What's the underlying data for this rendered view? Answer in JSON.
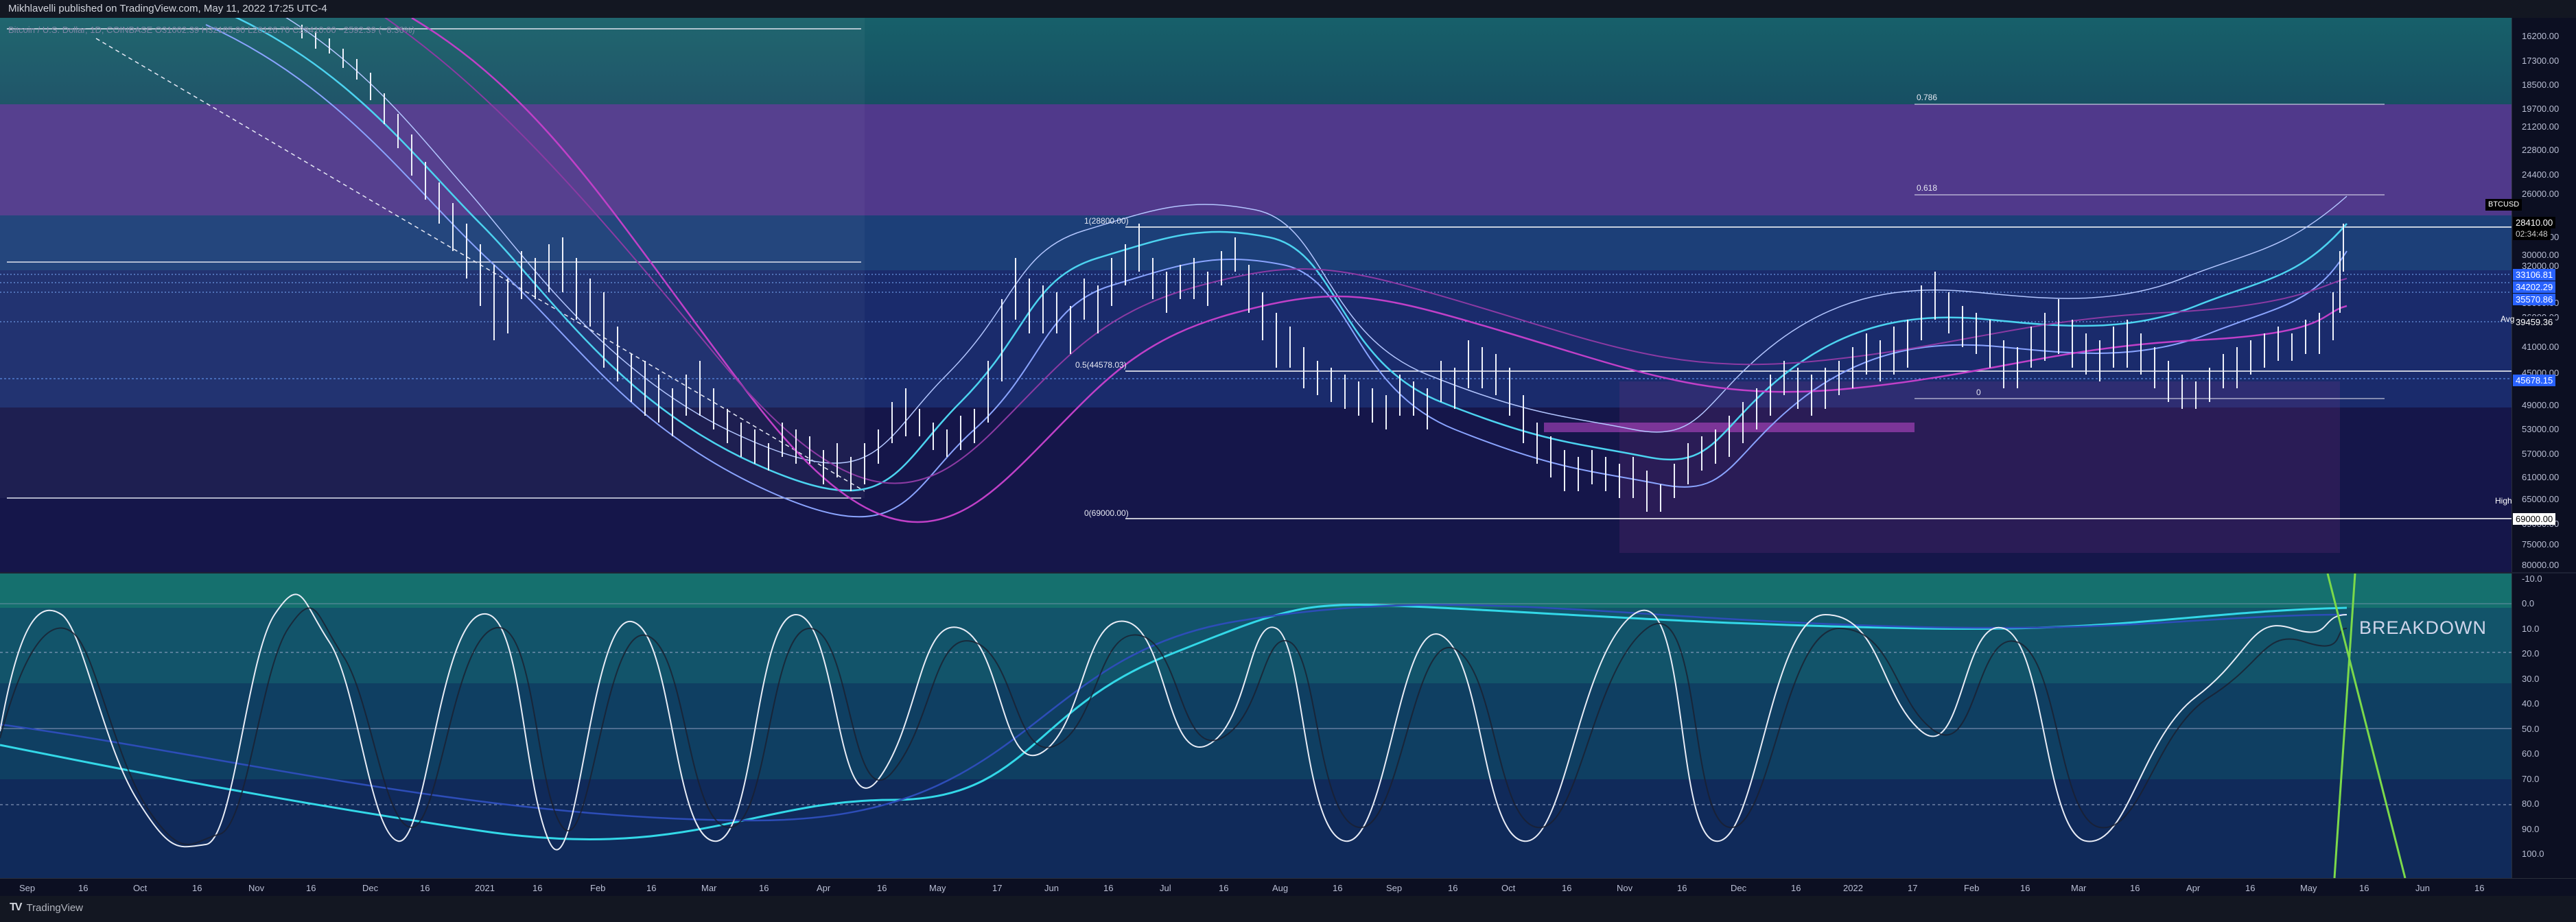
{
  "header": {
    "published_text": "Mikhlavelli published on TradingView.com, May 11, 2022 17:25 UTC-4"
  },
  "legend": {
    "text": "Bitcoin / U.S. Dollar, 1D, COINBASE  O31002.39  H32185.90  L28126.70  C28410.00  −2592.39 (−8.36%)"
  },
  "price_scale": {
    "ticks": [
      "16200.00",
      "17300.00",
      "18500.00",
      "19700.00",
      "21200.00",
      "22800.00",
      "24400.00",
      "26000.00",
      "28000.00",
      "30000.00",
      "32000.00",
      "36000.00",
      "38000.00",
      "41000.00",
      "45000.00",
      "49000.00",
      "53000.00",
      "57000.00",
      "61000.00",
      "65000.00",
      "69000.00",
      "75000.00",
      "80000.00"
    ],
    "symbol_label": "BTCUSD",
    "last_price": "28410.00",
    "countdown": "02:34:48",
    "levels": [
      "33106.81",
      "34202.29",
      "35570.86"
    ],
    "avg_label": "Avg",
    "avg_value": "39459.36",
    "level_45678": "45678.15",
    "high_label": "High",
    "high_value": "69000.00"
  },
  "fib": {
    "f0786": "0.786",
    "f0618": "0.618",
    "f1": "1(28800.00)",
    "f05": "0.5(44578.03)",
    "f0_right": "0",
    "f0": "0(69000.00)"
  },
  "osc_scale": {
    "ticks": [
      "-10.0",
      "0.0",
      "10.0",
      "20.0",
      "30.0",
      "40.0",
      "50.0",
      "60.0",
      "70.0",
      "80.0",
      "90.0",
      "100.0"
    ]
  },
  "annotation": {
    "breakdown": "BREAKDOWN"
  },
  "time_axis": {
    "labels": [
      "Sep",
      "16",
      "Oct",
      "16",
      "Nov",
      "16",
      "Dec",
      "16",
      "2021",
      "16",
      "Feb",
      "16",
      "Mar",
      "16",
      "Apr",
      "16",
      "May",
      "17",
      "Jun",
      "16",
      "Jul",
      "16",
      "Aug",
      "16",
      "Sep",
      "16",
      "Oct",
      "16",
      "Nov",
      "16",
      "Dec",
      "16",
      "2022",
      "17",
      "Feb",
      "16",
      "Mar",
      "16",
      "Apr",
      "16",
      "May",
      "16",
      "Jun",
      "16"
    ]
  },
  "footer": {
    "brand": "TradingView",
    "logo_text": "TV"
  },
  "colors": {
    "teal_band": "#1d6a78",
    "purple_band": "#6a4aa8",
    "cyan_line": "#2ed6e0",
    "green_line": "#7bd94a",
    "tag_blue": "#2962ff"
  }
}
